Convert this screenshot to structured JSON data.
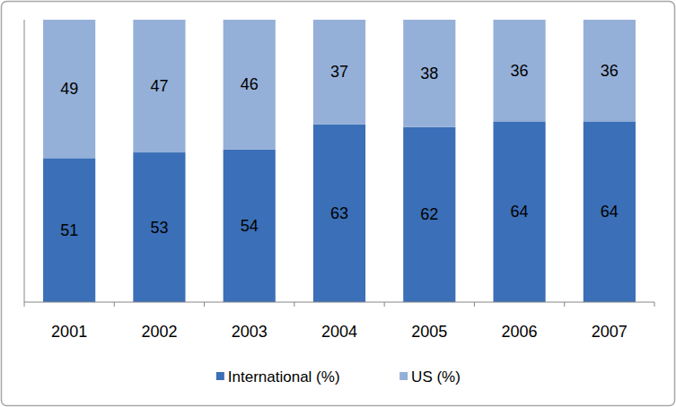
{
  "chart_data": {
    "type": "bar",
    "stacked": true,
    "data_labels": true,
    "tick_labels": "x",
    "legend": "bottom",
    "grid": false,
    "categories": [
      "2001",
      "2002",
      "2003",
      "2004",
      "2005",
      "2006",
      "2007"
    ],
    "series": [
      {
        "name": "International (%)",
        "color": "#3b6fb7",
        "values": [
          51,
          53,
          54,
          63,
          62,
          64,
          64
        ]
      },
      {
        "name": "US (%)",
        "color": "#95b0d8",
        "values": [
          49,
          47,
          46,
          37,
          38,
          36,
          36
        ]
      }
    ],
    "ylim": [
      0,
      100
    ]
  }
}
